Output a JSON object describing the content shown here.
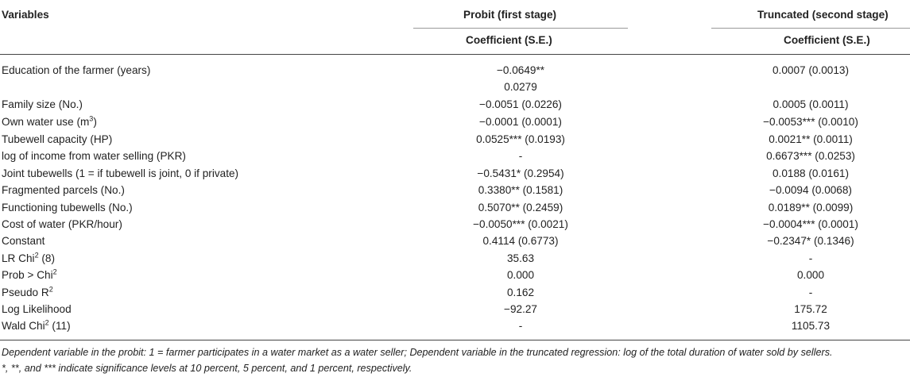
{
  "header": {
    "variables": "Variables",
    "probit": "Probit (first stage)",
    "truncated": "Truncated (second stage)",
    "coef": "Coefficient (S.E.)"
  },
  "rows": [
    {
      "label": "Education of the farmer (years)",
      "sup": "",
      "suffix": "",
      "probit": "−0.0649**",
      "truncated": "0.0007 (0.0013)"
    },
    {
      "label": "",
      "sup": "",
      "suffix": "",
      "probit": "0.0279",
      "truncated": ""
    },
    {
      "label": "Family size (No.)",
      "sup": "",
      "suffix": "",
      "probit": "−0.0051 (0.0226)",
      "truncated": "0.0005 (0.0011)"
    },
    {
      "label": "Own water use (m",
      "sup": "3",
      "suffix": ")",
      "probit": "−0.0001 (0.0001)",
      "truncated": "−0.0053*** (0.0010)"
    },
    {
      "label": "Tubewell capacity (HP)",
      "sup": "",
      "suffix": "",
      "probit": "0.0525*** (0.0193)",
      "truncated": "0.0021** (0.0011)"
    },
    {
      "label": "log of income from water selling (PKR)",
      "sup": "",
      "suffix": "",
      "probit": "-",
      "truncated": "0.6673*** (0.0253)"
    },
    {
      "label": "Joint tubewells (1 = if tubewell is joint, 0 if private)",
      "sup": "",
      "suffix": "",
      "probit": "−0.5431* (0.2954)",
      "truncated": "0.0188 (0.0161)"
    },
    {
      "label": "Fragmented parcels (No.)",
      "sup": "",
      "suffix": "",
      "probit": "0.3380** (0.1581)",
      "truncated": "−0.0094 (0.0068)"
    },
    {
      "label": "Functioning tubewells (No.)",
      "sup": "",
      "suffix": "",
      "probit": "0.5070** (0.2459)",
      "truncated": "0.0189** (0.0099)"
    },
    {
      "label": "Cost of water (PKR/hour)",
      "sup": "",
      "suffix": "",
      "probit": "−0.0050*** (0.0021)",
      "truncated": "−0.0004*** (0.0001)"
    },
    {
      "label": "Constant",
      "sup": "",
      "suffix": "",
      "probit": "0.4114 (0.6773)",
      "truncated": "−0.2347* (0.1346)"
    },
    {
      "label": "LR Chi",
      "sup": "2",
      "suffix": " (8)",
      "probit": "35.63",
      "truncated": "-"
    },
    {
      "label": "Prob > Chi",
      "sup": "2",
      "suffix": "",
      "probit": "0.000",
      "truncated": "0.000"
    },
    {
      "label": "Pseudo R",
      "sup": "2",
      "suffix": "",
      "probit": "0.162",
      "truncated": "-"
    },
    {
      "label": "Log Likelihood",
      "sup": "",
      "suffix": "",
      "probit": "−92.27",
      "truncated": "175.72"
    },
    {
      "label": "Wald Chi",
      "sup": "2",
      "suffix": " (11)",
      "probit": "-",
      "truncated": "1105.73"
    }
  ],
  "notes": [
    "Dependent variable in the probit: 1 = farmer participates in a water market as a water seller; Dependent variable in the truncated regression: log of the total duration of water sold by sellers.",
    "*, **, and *** indicate significance levels at 10 percent, 5 percent, and 1 percent, respectively."
  ]
}
